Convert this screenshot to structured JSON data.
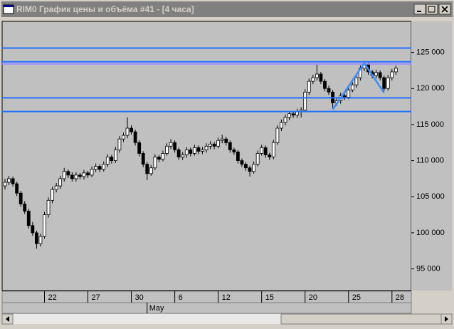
{
  "window": {
    "title": "RIM0 График цены и объёма #41 - [4 часа]"
  },
  "chart_data": {
    "type": "candlestick",
    "background": "#c0c0c0",
    "up_color": "#ffffff",
    "down_color": "#000000",
    "xlim": [
      -0.72,
      102.9
    ],
    "ylim": [
      92000,
      129300
    ],
    "yticks": [
      {
        "value": 95000,
        "label": "95 000"
      },
      {
        "value": 100000,
        "label": "100 000"
      },
      {
        "value": 105000,
        "label": "105 000"
      },
      {
        "value": 110000,
        "label": "110 000"
      },
      {
        "value": 115000,
        "label": "115 000"
      },
      {
        "value": 120000,
        "label": "120 000"
      },
      {
        "value": 125000,
        "label": "125 000"
      }
    ],
    "xticks": [
      {
        "value": 10,
        "label": "22"
      },
      {
        "value": 21,
        "label": "27"
      },
      {
        "value": 32,
        "label": "30"
      },
      {
        "value": 43,
        "label": "6"
      },
      {
        "value": 54,
        "label": "12"
      },
      {
        "value": 65,
        "label": "15"
      },
      {
        "value": 76,
        "label": "20"
      },
      {
        "value": 87,
        "label": "25"
      },
      {
        "value": 98,
        "label": "28"
      }
    ],
    "xticks2": [
      {
        "value": 36,
        "label": "May"
      }
    ],
    "hlines": [
      {
        "value": 125600,
        "color": "#2070ff"
      },
      {
        "value": 123700,
        "color": "#2070ff"
      },
      {
        "value": 123400,
        "color": "#a08cff"
      },
      {
        "value": 118700,
        "color": "#2070ff"
      },
      {
        "value": 116800,
        "color": "#2070ff"
      }
    ],
    "trendline": {
      "color": "#3c8cff",
      "x": [
        83,
        91,
        96
      ],
      "y": [
        117100,
        123500,
        119400
      ]
    },
    "candles": [
      [
        106500,
        107500,
        106000,
        107000
      ],
      [
        107000,
        107900,
        106600,
        107500
      ],
      [
        107500,
        107800,
        106400,
        106800
      ],
      [
        106800,
        107100,
        105100,
        105500
      ],
      [
        105500,
        105800,
        103600,
        104000
      ],
      [
        104000,
        104400,
        102600,
        103000
      ],
      [
        103000,
        103300,
        100600,
        101000
      ],
      [
        101000,
        101500,
        99600,
        100000
      ],
      [
        100000,
        100300,
        97800,
        98500
      ],
      [
        98500,
        99900,
        98100,
        99500
      ],
      [
        99500,
        102900,
        99200,
        102500
      ],
      [
        102500,
        104900,
        102100,
        104500
      ],
      [
        104500,
        106400,
        104100,
        106000
      ],
      [
        106000,
        106900,
        105600,
        106500
      ],
      [
        106500,
        107900,
        106100,
        107500
      ],
      [
        107500,
        109000,
        107100,
        108500
      ],
      [
        108500,
        108800,
        107600,
        108000
      ],
      [
        108000,
        108400,
        107100,
        107500
      ],
      [
        107500,
        108400,
        107100,
        108000
      ],
      [
        108000,
        108300,
        107400,
        107800
      ],
      [
        107800,
        108700,
        107400,
        108300
      ],
      [
        108300,
        108600,
        107600,
        108000
      ],
      [
        108000,
        109200,
        107700,
        108800
      ],
      [
        108800,
        109600,
        108400,
        109200
      ],
      [
        109200,
        109500,
        108400,
        108800
      ],
      [
        108800,
        109900,
        108500,
        109500
      ],
      [
        109500,
        110900,
        109100,
        110500
      ],
      [
        110500,
        110800,
        109600,
        110000
      ],
      [
        110000,
        111900,
        109700,
        111500
      ],
      [
        111500,
        113400,
        111100,
        113000
      ],
      [
        113000,
        113900,
        112600,
        113500
      ],
      [
        113500,
        116000,
        113100,
        114500
      ],
      [
        114500,
        114900,
        113600,
        114000
      ],
      [
        114000,
        114300,
        112100,
        112500
      ],
      [
        112500,
        112800,
        110600,
        111000
      ],
      [
        111000,
        111300,
        109100,
        109500
      ],
      [
        109500,
        109800,
        107300,
        108200
      ],
      [
        108200,
        109400,
        107900,
        109000
      ],
      [
        109000,
        110900,
        108700,
        110500
      ],
      [
        110500,
        110800,
        109800,
        110200
      ],
      [
        110200,
        111400,
        109900,
        111000
      ],
      [
        111000,
        112400,
        110700,
        112000
      ],
      [
        112000,
        113000,
        111600,
        112500
      ],
      [
        112500,
        112800,
        111100,
        111500
      ],
      [
        111500,
        111800,
        110100,
        110500
      ],
      [
        110500,
        111200,
        110100,
        110800
      ],
      [
        110800,
        111900,
        110400,
        111500
      ],
      [
        111500,
        111800,
        110600,
        111000
      ],
      [
        111000,
        112200,
        110700,
        111800
      ],
      [
        111800,
        112100,
        110900,
        111300
      ],
      [
        111300,
        111900,
        110900,
        111500
      ],
      [
        111500,
        112400,
        111100,
        112000
      ],
      [
        112000,
        112700,
        111600,
        112300
      ],
      [
        112300,
        112600,
        111600,
        112000
      ],
      [
        112000,
        113200,
        111700,
        112800
      ],
      [
        112800,
        113600,
        112400,
        113000
      ],
      [
        113000,
        113300,
        112100,
        112500
      ],
      [
        112500,
        112800,
        111100,
        111500
      ],
      [
        111500,
        111800,
        110800,
        111200
      ],
      [
        111200,
        111500,
        109600,
        110000
      ],
      [
        110000,
        110300,
        109100,
        109500
      ],
      [
        109500,
        109800,
        108600,
        109000
      ],
      [
        109000,
        109300,
        107800,
        108500
      ],
      [
        108500,
        109900,
        108200,
        109500
      ],
      [
        109500,
        111400,
        109200,
        111000
      ],
      [
        111000,
        112200,
        110700,
        111800
      ],
      [
        111800,
        112100,
        110400,
        110800
      ],
      [
        110800,
        111100,
        110100,
        110500
      ],
      [
        110500,
        112900,
        110200,
        112500
      ],
      [
        112500,
        114900,
        112200,
        114500
      ],
      [
        114500,
        115700,
        114100,
        115300
      ],
      [
        115300,
        116400,
        114900,
        116000
      ],
      [
        116000,
        116900,
        115600,
        116500
      ],
      [
        116500,
        116800,
        115900,
        116300
      ],
      [
        116300,
        117200,
        115900,
        116800
      ],
      [
        116800,
        117400,
        116000,
        117000
      ],
      [
        117000,
        119900,
        116700,
        119500
      ],
      [
        119500,
        121400,
        119100,
        121000
      ],
      [
        121000,
        121900,
        120600,
        121500
      ],
      [
        121500,
        123300,
        121100,
        122000
      ],
      [
        122000,
        122300,
        120600,
        121000
      ],
      [
        121000,
        121300,
        119600,
        120000
      ],
      [
        120000,
        120400,
        119100,
        119500
      ],
      [
        119500,
        119800,
        117300,
        118000
      ],
      [
        118000,
        118700,
        117600,
        118300
      ],
      [
        118300,
        119400,
        117900,
        119000
      ],
      [
        119000,
        119300,
        118400,
        118800
      ],
      [
        118800,
        120200,
        118500,
        119800
      ],
      [
        119800,
        120900,
        119500,
        120500
      ],
      [
        120500,
        121900,
        120100,
        121500
      ],
      [
        121500,
        123200,
        121100,
        122800
      ],
      [
        122800,
        123800,
        122400,
        123300
      ],
      [
        123300,
        123600,
        121900,
        122300
      ],
      [
        122300,
        122600,
        121400,
        121800
      ],
      [
        121800,
        122600,
        121400,
        122200
      ],
      [
        122200,
        122500,
        121100,
        121500
      ],
      [
        121500,
        121800,
        119600,
        120000
      ],
      [
        120000,
        121900,
        119700,
        121500
      ],
      [
        121500,
        122700,
        121100,
        122300
      ],
      [
        122300,
        123200,
        121900,
        122800
      ]
    ]
  }
}
